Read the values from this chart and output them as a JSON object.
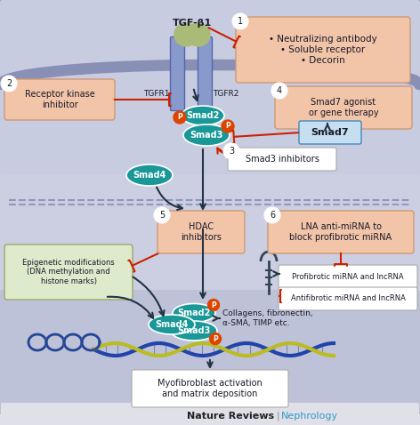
{
  "fig_width": 4.72,
  "fig_height": 4.78,
  "dpi": 100,
  "bg_outer": "#e0e0e8",
  "bg_cell": "#c8cce0",
  "bg_lower_cell": "#cccfe2",
  "bg_nucleus": "#bec2d8",
  "membrane_color": "#8890b5",
  "smad_teal": "#1a9898",
  "smad_light": "#3ab5b5",
  "box_salmon": "#f2c4a8",
  "box_white": "#f5f5ea",
  "box_blue": "#c5dff0",
  "box_green": "#ddeacc",
  "text_dark": "#1a1a2a",
  "red_col": "#cc2200",
  "dark_arrow": "#223344",
  "p_orange": "#dd4400",
  "dna_blue": "#2244aa",
  "dna_yellow": "#bbbb22",
  "nature_black": "#222222",
  "nephrology_blue": "#3399cc",
  "footer_left": "Nature Reviews",
  "footer_right": "Nephrology",
  "tgfb1": "TGF-β1",
  "tgfr1": "TGFR1",
  "tgfr2": "TGFR2",
  "box1_text": "• Neutralizing antibody\n• Soluble receptor\n• Decorin",
  "box2_text": "Receptor kinase\ninhibitor",
  "box3_text": "Smad3 inhibitors",
  "box4_text": "Smad7 agonist\nor gene therapy",
  "box5_text": "HDAC\ninhibitors",
  "box6_text": "LNA anti-miRNA to\nblock profibrotic miRNA",
  "epigenetic_text": "Epigenetic modifications\n(DNA methylation and\nhistone marks)",
  "profibrotic_text": "Profibrotic miRNA and lncRNA",
  "antifibrotic_text": "Antifibrotic miRNA and lncRNA",
  "collagens_text": "Collagens, fibronectin,\nα-SMA, TIMP etc.",
  "myofibroblast_text": "Myofibroblast activation\nand matrix deposition",
  "smad7_text": "Smad7"
}
